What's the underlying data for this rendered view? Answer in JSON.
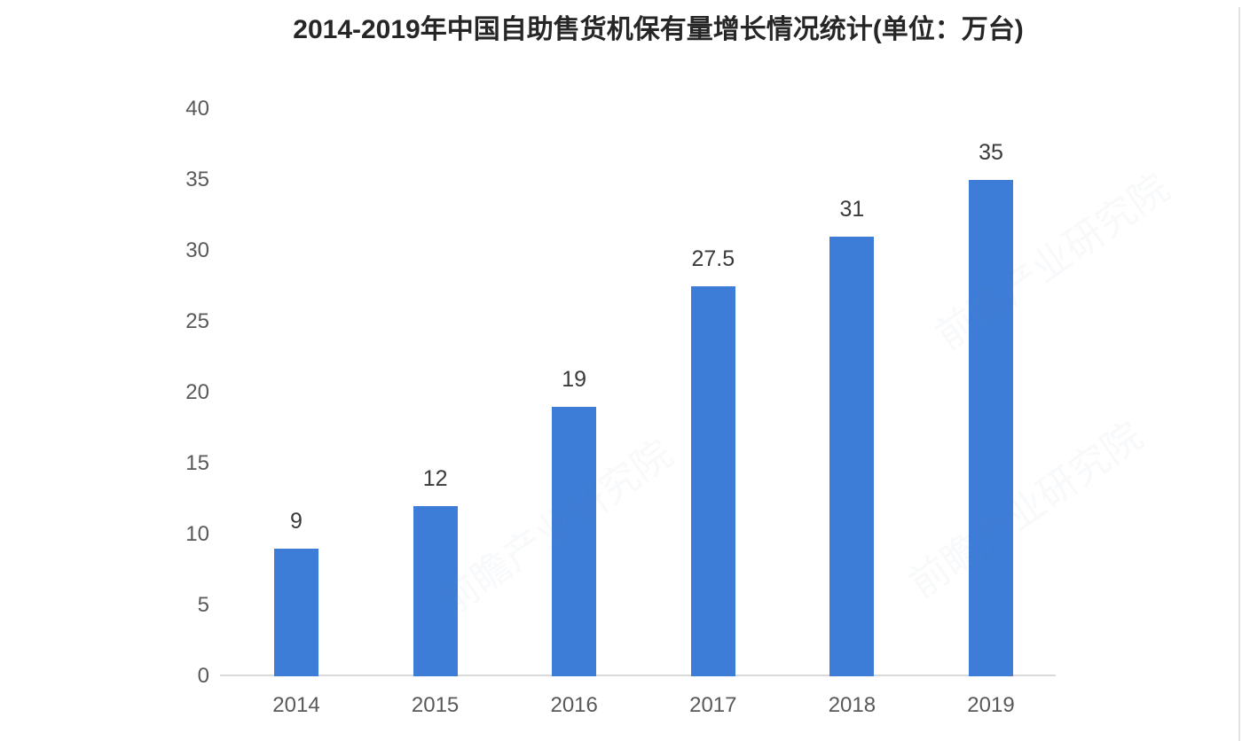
{
  "title": "2014-2019年中国自助售货机保有量增长情况统计(单位：万台)",
  "chart_data": {
    "type": "bar",
    "title": "2014-2019年中国自助售货机保有量增长情况统计(单位：万台)",
    "categories": [
      "2014",
      "2015",
      "2016",
      "2017",
      "2018",
      "2019"
    ],
    "values": [
      9,
      12,
      19,
      27.5,
      31,
      35
    ],
    "value_labels": [
      "9",
      "12",
      "19",
      "27.5",
      "31",
      "35"
    ],
    "unit": "万台",
    "xlabel": "",
    "ylabel": "",
    "ylim": [
      0,
      40
    ],
    "y_ticks": [
      0,
      5,
      10,
      15,
      20,
      25,
      30,
      35,
      40
    ],
    "grid": false,
    "legend": false,
    "bar_color": "#3d7cd7"
  },
  "colors": {
    "bar": "#3d7cd7",
    "axis_line": "#d9d9d9",
    "tick_label": "#595959",
    "value_label": "#3a3a3a",
    "title": "#262626",
    "background": "#ffffff"
  },
  "watermark": {
    "text": "前瞻产业研究院"
  }
}
